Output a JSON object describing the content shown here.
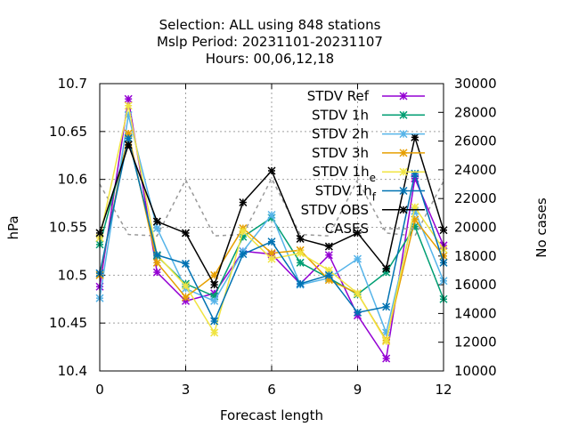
{
  "chart_data": {
    "type": "line",
    "title_lines": [
      "Selection: ALL using   848 stations",
      "Mslp   Period: 20231101-20231107",
      "Hours:  00,06,12,18"
    ],
    "xlabel": "Forecast length",
    "ylabel": "hPa",
    "y2label": "No cases",
    "xlim": [
      0,
      12
    ],
    "ylim": [
      10.4,
      10.7
    ],
    "y2lim": [
      10000,
      30000
    ],
    "x_ticks": [
      "0",
      "3",
      "6",
      "9",
      "12"
    ],
    "x_tick_values": [
      0,
      3,
      6,
      9,
      12
    ],
    "y_ticks": [
      "10.4",
      "10.45",
      "10.5",
      "10.55",
      "10.6",
      "10.65",
      "10.7"
    ],
    "y_tick_values": [
      10.4,
      10.45,
      10.5,
      10.55,
      10.6,
      10.65,
      10.7
    ],
    "y2_ticks": [
      "10000",
      "12000",
      "14000",
      "16000",
      "18000",
      "20000",
      "22000",
      "24000",
      "26000",
      "28000",
      "30000"
    ],
    "y2_tick_values": [
      10000,
      12000,
      14000,
      16000,
      18000,
      20000,
      22000,
      24000,
      26000,
      28000,
      30000
    ],
    "grid": true,
    "legend_position": "top-right",
    "x": [
      0,
      1,
      2,
      3,
      4,
      5,
      6,
      7,
      8,
      9,
      10,
      11,
      12
    ],
    "series": [
      {
        "name": "STDV Ref",
        "color": "#9400d3",
        "values": [
          10.488,
          10.684,
          10.503,
          10.473,
          10.481,
          10.525,
          10.522,
          10.491,
          10.521,
          10.458,
          10.413,
          10.601,
          10.531
        ]
      },
      {
        "name": "STDV 1h",
        "color": "#009e73",
        "values": [
          10.532,
          10.643,
          10.52,
          10.491,
          10.478,
          10.54,
          10.56,
          10.513,
          10.497,
          10.48,
          10.503,
          10.551,
          10.475
        ]
      },
      {
        "name": "STDV 2h",
        "color": "#56b4e9",
        "values": [
          10.476,
          10.667,
          10.549,
          10.486,
          10.473,
          10.525,
          10.563,
          10.49,
          10.497,
          10.517,
          10.44,
          10.567,
          10.494
        ]
      },
      {
        "name": "STDV 3h",
        "color": "#e69f00",
        "values": [
          10.5,
          10.648,
          10.513,
          10.477,
          10.5,
          10.549,
          10.523,
          10.526,
          10.495,
          10.481,
          10.432,
          10.558,
          10.52
        ]
      },
      {
        "name": "STDV 1h",
        "sub": "e",
        "color": "#f0e442",
        "values": [
          10.539,
          10.677,
          10.521,
          10.489,
          10.44,
          10.546,
          10.517,
          10.523,
          10.505,
          10.481,
          10.431,
          10.571,
          10.527
        ]
      },
      {
        "name": "STDV 1h",
        "sub": "f",
        "color": "#0072b2",
        "values": [
          10.502,
          10.643,
          10.521,
          10.512,
          10.452,
          10.522,
          10.535,
          10.491,
          10.5,
          10.461,
          10.467,
          10.606,
          10.513
        ]
      },
      {
        "name": "STDV OBS",
        "color": "#000000",
        "values": [
          10.544,
          10.636,
          10.556,
          10.544,
          10.49,
          10.576,
          10.609,
          10.538,
          10.53,
          10.544,
          10.507,
          10.644,
          10.547
        ]
      }
    ],
    "cases": {
      "name": "CASES",
      "color": "#999999",
      "axis": "right",
      "x": [
        0,
        1,
        2,
        3,
        4,
        5,
        6,
        7,
        8,
        9,
        10,
        11,
        12
      ],
      "values": [
        23000,
        19500,
        19400,
        23300,
        19400,
        19500,
        23400,
        19500,
        19400,
        23300,
        19600,
        19400,
        23200
      ]
    }
  }
}
